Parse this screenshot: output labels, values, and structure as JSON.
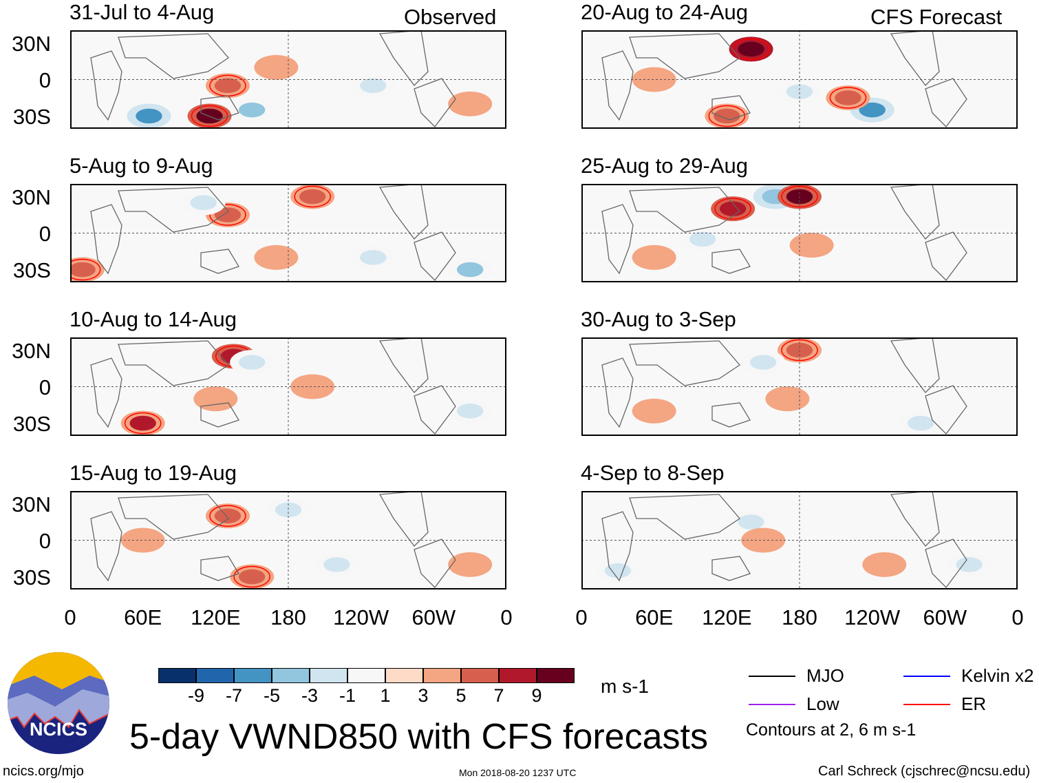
{
  "chart_data": {
    "type": "map",
    "title": "5-day VWND850 with CFS forecasts",
    "variable": "850 hPa meridional wind anomaly",
    "units": "m s-1",
    "column_labels": [
      "Observed",
      "CFS Forecast"
    ],
    "lat_ticks": [
      "30N",
      "0",
      "30S"
    ],
    "lon_ticks": [
      "0",
      "60E",
      "120E",
      "180",
      "120W",
      "60W",
      "0"
    ],
    "colorbar": {
      "levels": [
        "-9",
        "-7",
        "-5",
        "-3",
        "-1",
        "1",
        "3",
        "5",
        "7",
        "9"
      ],
      "colors": [
        "#08306b",
        "#2166ac",
        "#4393c3",
        "#92c5de",
        "#d1e5f0",
        "#f7f7f7",
        "#fddbc7",
        "#f4a582",
        "#d6604d",
        "#b2182b",
        "#67001f"
      ]
    },
    "legend": [
      {
        "label": "MJO",
        "color": "#000000"
      },
      {
        "label": "Kelvin x2",
        "color": "#0000ff"
      },
      {
        "label": "Low",
        "color": "#a020f0"
      },
      {
        "label": "ER",
        "color": "#ff0000"
      }
    ],
    "contour_note": "Contours at 2, 6 m s-1",
    "panels": [
      {
        "title": "31-Jul to 4-Aug",
        "col": 0,
        "row": 0,
        "features": [
          [
            65,
            -30,
            -7
          ],
          [
            115,
            -30,
            8
          ],
          [
            150,
            -25,
            -5
          ],
          [
            170,
            10,
            3
          ],
          [
            130,
            -5,
            4
          ],
          [
            330,
            -20,
            3
          ],
          [
            250,
            -5,
            -3
          ]
        ]
      },
      {
        "title": "5-Aug to 9-Aug",
        "col": 0,
        "row": 1,
        "features": [
          [
            130,
            15,
            5
          ],
          [
            110,
            25,
            -3
          ],
          [
            200,
            30,
            5
          ],
          [
            250,
            -20,
            -4
          ],
          [
            330,
            -30,
            -5
          ],
          [
            10,
            -30,
            5
          ],
          [
            170,
            -20,
            3
          ]
        ]
      },
      {
        "title": "10-Aug to 14-Aug",
        "col": 0,
        "row": 2,
        "features": [
          [
            135,
            25,
            7
          ],
          [
            150,
            20,
            -4
          ],
          [
            60,
            -30,
            6
          ],
          [
            120,
            -10,
            3
          ],
          [
            200,
            0,
            2
          ],
          [
            330,
            -20,
            -3
          ]
        ]
      },
      {
        "title": "15-Aug to 19-Aug",
        "col": 0,
        "row": 3,
        "features": [
          [
            130,
            20,
            4
          ],
          [
            60,
            0,
            3
          ],
          [
            150,
            -30,
            4
          ],
          [
            220,
            -20,
            -3
          ],
          [
            330,
            -20,
            3
          ],
          [
            180,
            25,
            -3
          ]
        ]
      },
      {
        "title": "20-Aug to 24-Aug",
        "col": 1,
        "row": 0,
        "features": [
          [
            140,
            25,
            9
          ],
          [
            60,
            0,
            3
          ],
          [
            240,
            -25,
            -7
          ],
          [
            220,
            -15,
            4
          ],
          [
            120,
            -30,
            4
          ],
          [
            180,
            -10,
            -3
          ]
        ]
      },
      {
        "title": "25-Aug to 29-Aug",
        "col": 1,
        "row": 1,
        "features": [
          [
            125,
            20,
            7
          ],
          [
            160,
            30,
            -6
          ],
          [
            180,
            30,
            8
          ],
          [
            60,
            -20,
            3
          ],
          [
            190,
            -10,
            3
          ],
          [
            100,
            -5,
            -3
          ]
        ]
      },
      {
        "title": "30-Aug to 3-Sep",
        "col": 1,
        "row": 2,
        "features": [
          [
            180,
            30,
            5
          ],
          [
            150,
            20,
            -4
          ],
          [
            170,
            -10,
            3
          ],
          [
            60,
            -20,
            3
          ],
          [
            280,
            -30,
            -3
          ]
        ]
      },
      {
        "title": "4-Sep to 8-Sep",
        "col": 1,
        "row": 3,
        "features": [
          [
            140,
            15,
            -3
          ],
          [
            150,
            0,
            3
          ],
          [
            250,
            -20,
            3
          ],
          [
            320,
            -20,
            -3
          ],
          [
            30,
            -25,
            -3
          ]
        ]
      }
    ]
  },
  "logo": {
    "text": "NCICS"
  },
  "footer": {
    "left": "ncics.org/mjo",
    "center": "Mon 2018-08-20 1237 UTC",
    "right": "Carl Schreck (cjschrec@ncsu.edu)"
  }
}
